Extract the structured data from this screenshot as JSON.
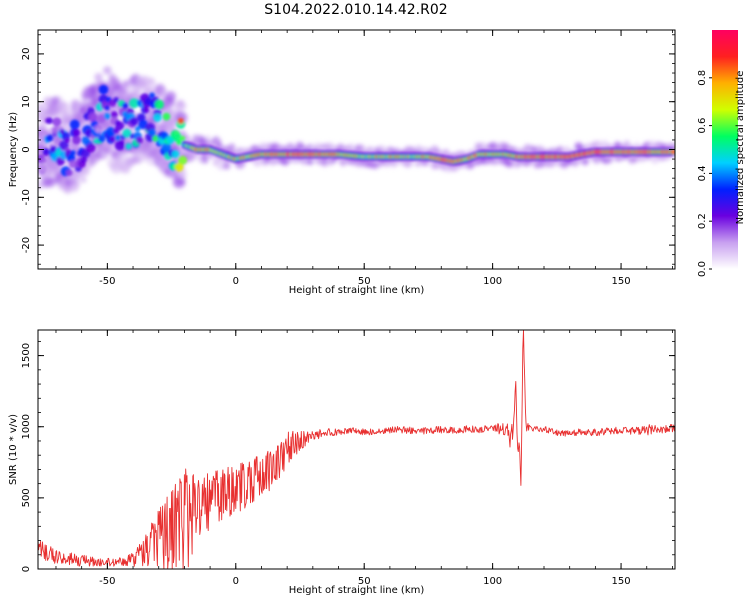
{
  "title": "S104.2022.010.14.42.R02",
  "chart_data": [
    {
      "type": "heatmap",
      "xlabel": "Height of straight line (km)",
      "ylabel": "Frequency (Hz)",
      "xlim": [
        -77,
        171
      ],
      "ylim": [
        -25,
        25
      ],
      "xticks": [
        -50,
        0,
        50,
        100,
        150
      ],
      "yticks": [
        -20,
        -10,
        0,
        10,
        20
      ],
      "colorbar": {
        "label": "Normalized spectral amplitude",
        "range": [
          0,
          1
        ],
        "ticks": [
          0.0,
          0.2,
          0.4,
          0.6,
          0.8
        ],
        "colormap": [
          "#ffffff",
          "#c8a0f0",
          "#6a00e0",
          "#0020ff",
          "#00d0ff",
          "#00ff60",
          "#d0ff00",
          "#ffb000",
          "#ff2020",
          "#ff0060"
        ]
      },
      "ridge": {
        "x": [
          -75,
          -70,
          -65,
          -60,
          -55,
          -50,
          -45,
          -40,
          -35,
          -30,
          -25,
          -20,
          -15,
          -10,
          -5,
          0,
          10,
          20,
          30,
          40,
          50,
          60,
          70,
          75,
          80,
          85,
          90,
          95,
          100,
          105,
          110,
          120,
          130,
          140,
          150,
          160,
          170
        ],
        "y": [
          1,
          2,
          0,
          2,
          6,
          8,
          4,
          6,
          7,
          5,
          2,
          1,
          0,
          0,
          -1,
          -2,
          -1,
          -1,
          -1,
          -1,
          -1.5,
          -1.5,
          -1.5,
          -1.5,
          -2,
          -2.5,
          -2,
          -1,
          -1,
          -1,
          -1.5,
          -1.5,
          -1.5,
          -0.5,
          -0.5,
          -0.5,
          -0.5
        ],
        "amplitude": [
          0.25,
          0.3,
          0.3,
          0.3,
          0.35,
          0.35,
          0.3,
          0.35,
          0.4,
          0.45,
          0.5,
          0.6,
          0.8,
          0.75,
          0.7,
          0.7,
          0.85,
          0.9,
          0.9,
          0.75,
          0.7,
          0.7,
          0.7,
          0.8,
          0.9,
          0.85,
          0.8,
          0.8,
          0.75,
          0.7,
          0.85,
          0.95,
          0.95,
          0.95,
          0.95,
          0.9,
          0.85
        ]
      }
    },
    {
      "type": "line",
      "xlabel": "Height of straight line (km)",
      "ylabel": "SNR (10 * v/v)",
      "xlim": [
        -77,
        171
      ],
      "ylim": [
        0,
        1680
      ],
      "xticks": [
        -50,
        0,
        50,
        100,
        150
      ],
      "yticks": [
        0,
        500,
        1000,
        1500
      ],
      "color": "#e83030",
      "series": [
        {
          "x": [
            -77,
            -70,
            -60,
            -50,
            -45,
            -40,
            -35,
            -30,
            -25,
            -20,
            -15,
            -10,
            -5,
            0,
            5,
            10,
            15,
            20,
            25,
            30,
            35,
            40,
            45,
            50,
            55,
            60,
            65,
            70,
            75,
            80,
            85,
            90,
            95,
            100,
            105,
            108,
            109,
            110,
            111,
            112,
            113,
            115,
            120,
            125,
            130,
            135,
            140,
            145,
            150,
            155,
            160,
            165,
            171
          ],
          "y": [
            120,
            80,
            60,
            45,
            50,
            80,
            150,
            250,
            350,
            420,
            480,
            530,
            570,
            600,
            640,
            690,
            760,
            840,
            900,
            940,
            960,
            965,
            970,
            960,
            965,
            975,
            980,
            970,
            975,
            980,
            970,
            985,
            980,
            990,
            985,
            960,
            1250,
            820,
            700,
            1660,
            990,
            980,
            985,
            960,
            955,
            965,
            960,
            970,
            975,
            970,
            980,
            975,
            990
          ],
          "noise": [
            90,
            60,
            40,
            30,
            30,
            60,
            150,
            300,
            350,
            500,
            280,
            250,
            230,
            220,
            200,
            200,
            180,
            140,
            70,
            40,
            30,
            25,
            25,
            25,
            25,
            25,
            25,
            25,
            25,
            25,
            25,
            25,
            25,
            25,
            50,
            120,
            0,
            0,
            0,
            0,
            50,
            25,
            20,
            25,
            25,
            25,
            25,
            25,
            25,
            25,
            40,
            30,
            30
          ]
        }
      ]
    }
  ]
}
